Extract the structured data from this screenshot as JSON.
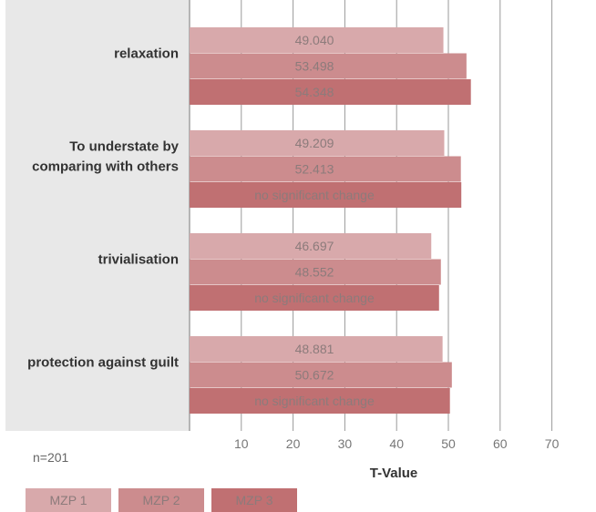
{
  "chart_data": {
    "type": "bar",
    "orientation": "horizontal",
    "categories": [
      "relaxation",
      "To understate by comparing with others",
      "trivialisation",
      "protection against guilt"
    ],
    "category_lines": [
      [
        "relaxation"
      ],
      [
        "To understate by",
        "comparing with others"
      ],
      [
        "trivialisation"
      ],
      [
        "protection against guilt"
      ]
    ],
    "series": [
      {
        "name": "MZP 1",
        "color": "#d8a9ab",
        "values": [
          49.04,
          49.209,
          46.697,
          48.881
        ],
        "labels": [
          "49.040",
          "49.209",
          "46.697",
          "48.881"
        ]
      },
      {
        "name": "MZP 2",
        "color": "#cc8c8e",
        "values": [
          53.498,
          52.413,
          48.552,
          50.672
        ],
        "labels": [
          "53.498",
          "52.413",
          "48.552",
          "50.672"
        ]
      },
      {
        "name": "MZP 3",
        "color": "#c07072",
        "values": [
          54.348,
          52.5,
          48.2,
          50.3
        ],
        "labels": [
          "54.348",
          "no significant change",
          "no significant change",
          "no significant change"
        ]
      }
    ],
    "xlabel": "T-Value",
    "xlim": [
      0,
      75
    ],
    "xticks": [
      10,
      20,
      30,
      40,
      50,
      60,
      70
    ],
    "grid": true,
    "note": "n=201",
    "legend_position": "bottom-left"
  }
}
